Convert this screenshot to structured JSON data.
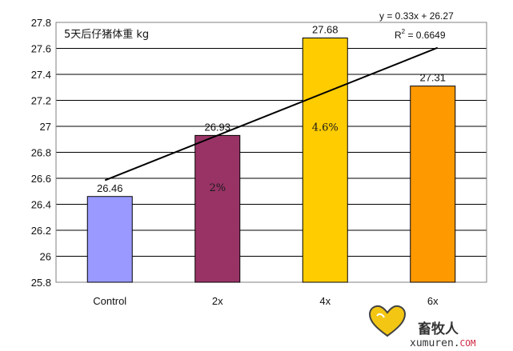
{
  "chart_data": {
    "type": "bar",
    "title": "5天后仔猪体重 kg",
    "categories": [
      "Control",
      "2x",
      "4x",
      "6x"
    ],
    "values": [
      26.46,
      26.93,
      27.68,
      27.31
    ],
    "data_labels": [
      "26.46",
      "26.93",
      "27.68",
      "27.31"
    ],
    "inbar_labels": [
      "",
      "2%",
      "4.6%",
      ""
    ],
    "colors": [
      "#9999ff",
      "#993366",
      "#ffcc00",
      "#ff9900"
    ],
    "ylim": [
      25.8,
      27.8
    ],
    "yticks": [
      "25.8",
      "26",
      "26.2",
      "26.4",
      "26.6",
      "26.8",
      "27",
      "27.2",
      "27.4",
      "27.6",
      "27.8"
    ],
    "grid": true,
    "xlabel": "",
    "ylabel": "",
    "trendline": {
      "type": "linear",
      "equation": "y = 0.33x + 26.27",
      "r2_prefix": "R",
      "r2_sup": "2",
      "r2_value": " = 0.6649",
      "slope": 0.33,
      "intercept": 26.27
    }
  },
  "watermark": {
    "text": "畜牧人",
    "url": "xumuren.",
    "url_suffix": "COM"
  }
}
